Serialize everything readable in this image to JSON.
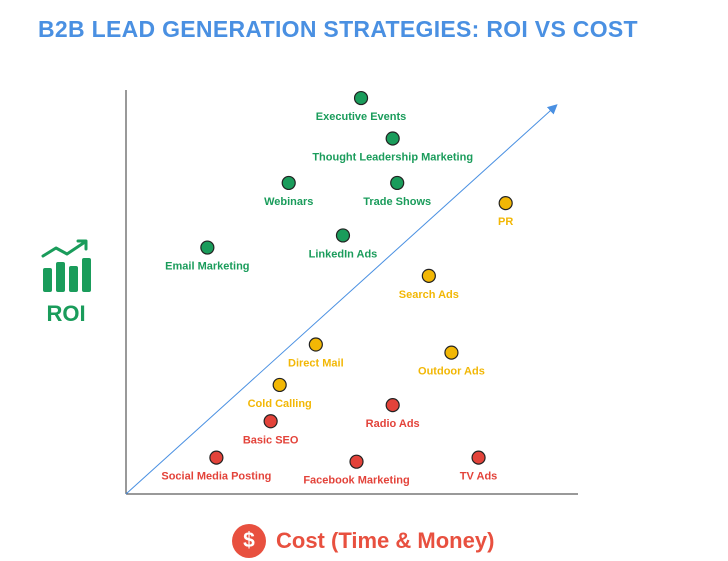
{
  "title": "B2B LEAD GENERATION STRATEGIES: ROI VS COST",
  "y_axis": {
    "label": "ROI",
    "icon": "growth-chart-icon"
  },
  "x_axis": {
    "label": "Cost (Time & Money)",
    "icon": "dollar-icon",
    "icon_text": "$"
  },
  "colors": {
    "high": "#1a9c5b",
    "medium": "#f2b705",
    "low": "#e3433a",
    "title": "#4a90e2",
    "trend": "#4a90e2"
  },
  "chart_data": {
    "type": "scatter",
    "title": "B2B LEAD GENERATION STRATEGIES: ROI VS COST",
    "xlabel": "Cost (Time & Money)",
    "ylabel": "ROI",
    "xlim": [
      0,
      100
    ],
    "ylim": [
      0,
      100
    ],
    "grid": false,
    "trend_line": {
      "from": [
        0,
        0
      ],
      "to": [
        95,
        96
      ]
    },
    "points": [
      {
        "label": "Executive Events",
        "x": 52,
        "y": 98,
        "group": "high"
      },
      {
        "label": "Thought Leadership Marketing",
        "x": 59,
        "y": 88,
        "group": "high"
      },
      {
        "label": "Webinars",
        "x": 36,
        "y": 77,
        "group": "high"
      },
      {
        "label": "Trade Shows",
        "x": 60,
        "y": 77,
        "group": "high"
      },
      {
        "label": "LinkedIn Ads",
        "x": 48,
        "y": 64,
        "group": "high"
      },
      {
        "label": "Email Marketing",
        "x": 18,
        "y": 61,
        "group": "high"
      },
      {
        "label": "PR",
        "x": 84,
        "y": 72,
        "group": "medium"
      },
      {
        "label": "Search Ads",
        "x": 67,
        "y": 54,
        "group": "medium"
      },
      {
        "label": "Direct Mail",
        "x": 42,
        "y": 37,
        "group": "medium"
      },
      {
        "label": "Outdoor Ads",
        "x": 72,
        "y": 35,
        "group": "medium"
      },
      {
        "label": "Cold Calling",
        "x": 34,
        "y": 27,
        "group": "medium"
      },
      {
        "label": "Radio Ads",
        "x": 59,
        "y": 22,
        "group": "low"
      },
      {
        "label": "Basic SEO",
        "x": 32,
        "y": 18,
        "group": "low"
      },
      {
        "label": "Social Media Posting",
        "x": 20,
        "y": 9,
        "group": "low"
      },
      {
        "label": "Facebook Marketing",
        "x": 51,
        "y": 8,
        "group": "low"
      },
      {
        "label": "TV Ads",
        "x": 78,
        "y": 9,
        "group": "low"
      }
    ]
  }
}
